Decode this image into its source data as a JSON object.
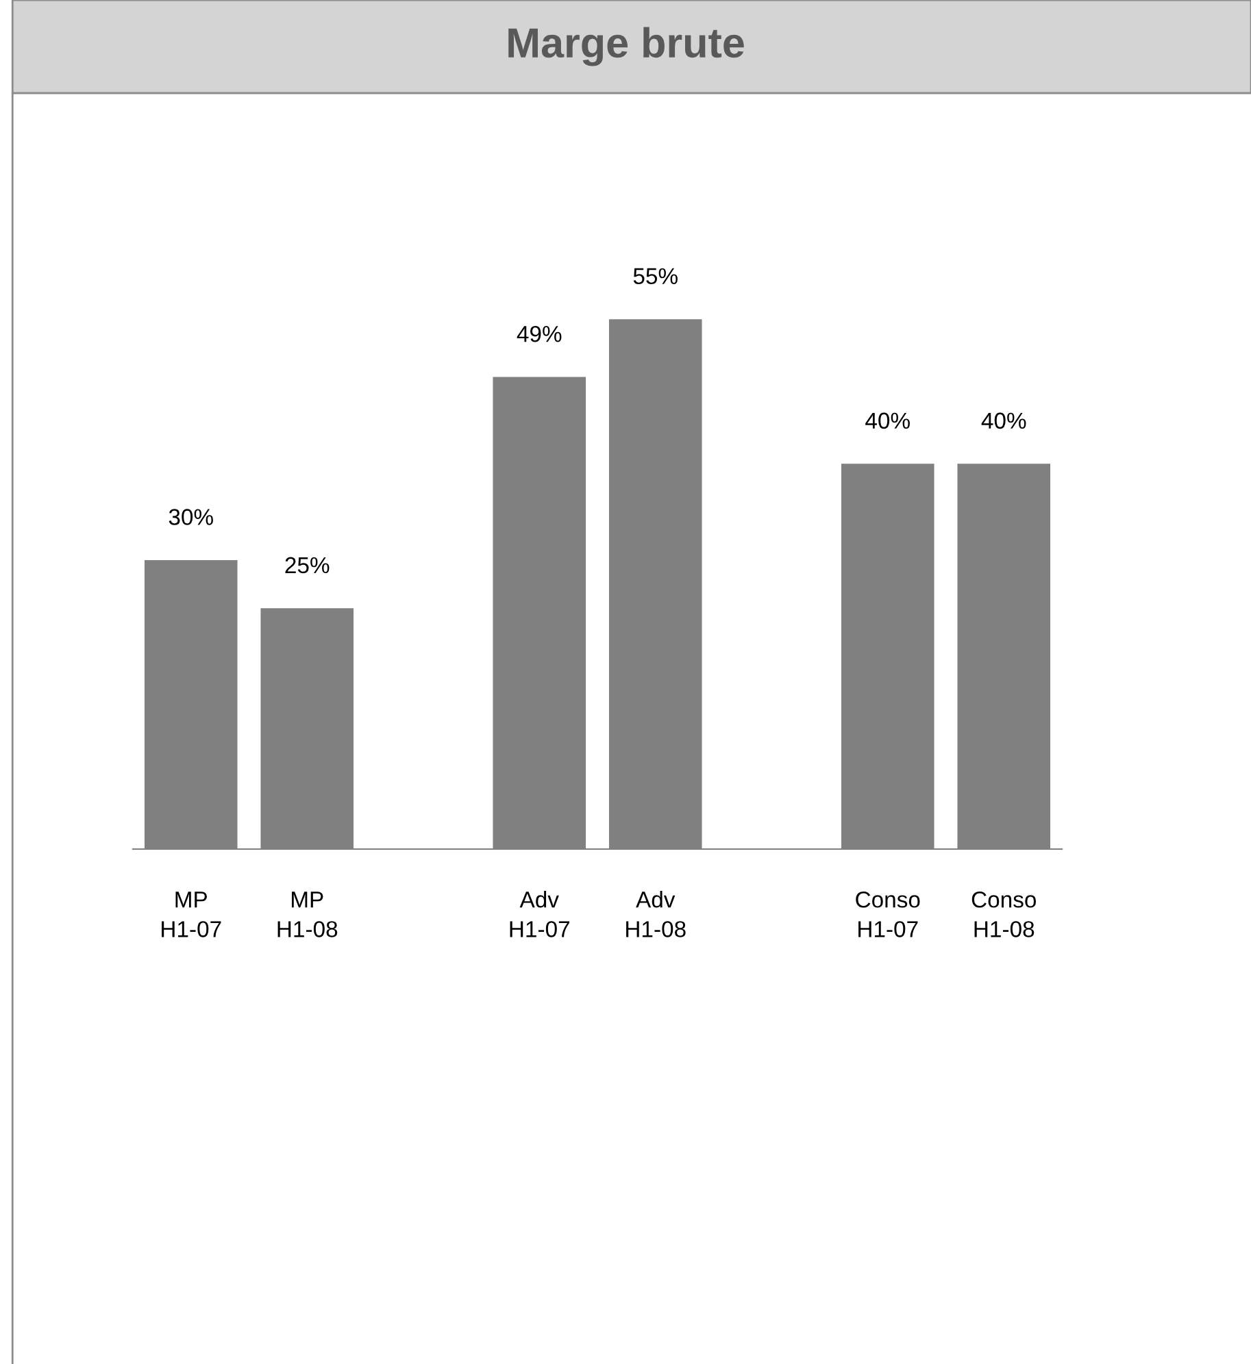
{
  "chart_data": {
    "type": "bar",
    "title": "Marge brute",
    "categories": [
      "MP\nH1-07",
      "MP\nH1-08",
      null,
      "Adv\nH1-07",
      "Adv\nH1-08",
      null,
      "Conso\nH1-07",
      "Conso\nH1-08"
    ],
    "values": [
      30,
      25,
      null,
      49,
      55,
      null,
      40,
      40
    ],
    "value_labels": [
      "30%",
      "25%",
      null,
      "49%",
      "55%",
      null,
      "40%",
      "40%"
    ],
    "color": "#808080",
    "grid": false,
    "legend": false
  }
}
